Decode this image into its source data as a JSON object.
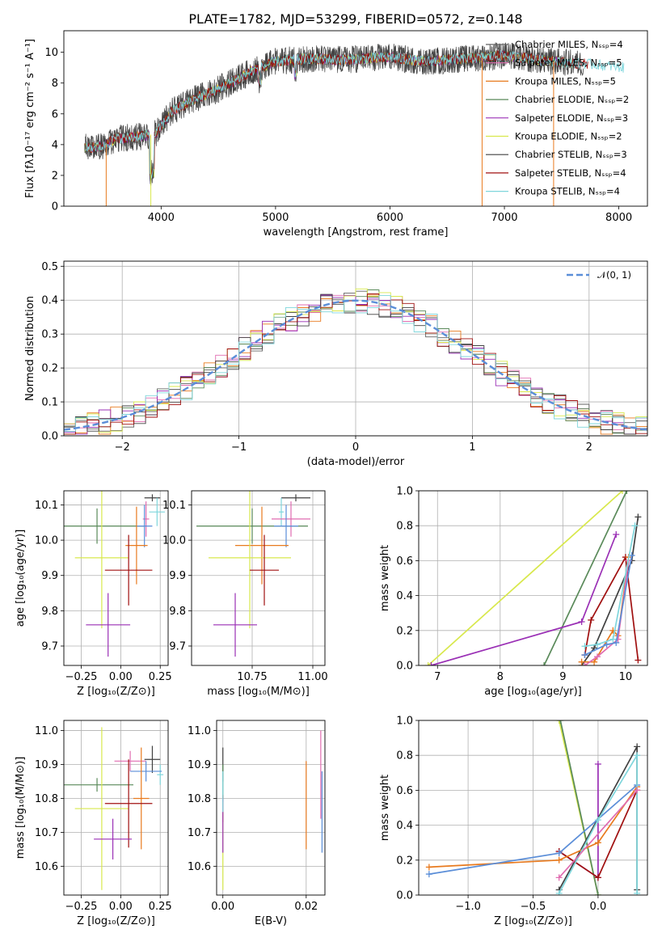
{
  "chart_data": [
    {
      "id": "spectrum",
      "type": "line",
      "title": "PLATE=1782, MJD=53299, FIBERID=0572, z=0.148",
      "xlabel": "wavelength [Angstrom, rest frame]",
      "ylabel": "Flux [fλ10⁻¹⁷ erg cm⁻² s⁻¹ A⁻¹]",
      "xlim": [
        3150,
        8250
      ],
      "ylim": [
        0,
        11.4
      ],
      "xticks": [
        4000,
        5000,
        6000,
        7000,
        8000
      ],
      "yticks": [
        0,
        2,
        4,
        6,
        8,
        10
      ],
      "grid": false,
      "legend_position": "top-right",
      "continuum": {
        "x": [
          3330,
          3500,
          3600,
          3800,
          3950,
          4100,
          4300,
          4500,
          4800,
          5000,
          5300,
          5600,
          6000,
          6300,
          6700,
          7000,
          7300,
          7600,
          7800,
          8050
        ],
        "y": [
          3.8,
          3.9,
          4.4,
          4.5,
          4.7,
          6.2,
          7.0,
          7.6,
          8.8,
          9.4,
          9.6,
          9.5,
          9.7,
          9.4,
          9.6,
          9.8,
          9.5,
          9.3,
          9.2,
          9.0
        ]
      },
      "series": [
        {
          "name": "Chabrier MILES, Nₛₛₚ=4",
          "color": "#606060"
        },
        {
          "name": "Salpeter MILES, Nₛₛₚ=5",
          "color": "#e06cb0"
        },
        {
          "name": "Kroupa MILES, Nₛₛₚ=5",
          "color": "#e87a1e"
        },
        {
          "name": "Chabrier ELODIE, Nₛₛₚ=2",
          "color": "#5a8a5a"
        },
        {
          "name": "Salpeter ELODIE, Nₛₛₚ=3",
          "color": "#9a2fb5"
        },
        {
          "name": "Kroupa ELODIE, Nₛₛₚ=2",
          "color": "#d8e84c"
        },
        {
          "name": "Chabrier STELIB, Nₛₛₚ=3",
          "color": "#404040"
        },
        {
          "name": "Salpeter STELIB, Nₛₛₚ=4",
          "color": "#a01010"
        },
        {
          "name": "Kroupa STELIB, Nₛₛₚ=4",
          "color": "#7fd6dc"
        }
      ]
    },
    {
      "id": "residuals",
      "type": "step",
      "xlabel": "(data-model)/error",
      "ylabel": "Normed distribution",
      "xlim": [
        -2.5,
        2.5
      ],
      "ylim": [
        0,
        0.515
      ],
      "xticks": [
        -2,
        -1,
        0,
        1,
        2
      ],
      "yticks": [
        0.0,
        0.1,
        0.2,
        0.3,
        0.4,
        0.5
      ],
      "grid": true,
      "legend_position": "top-right",
      "normal_curve": {
        "name": "𝒩(0, 1)",
        "color": "#5b8ed8",
        "mean": 0,
        "sigma": 1
      },
      "bin_width": 0.1,
      "series_colors": [
        "#606060",
        "#e06cb0",
        "#e87a1e",
        "#5a8a5a",
        "#9a2fb5",
        "#d8e84c",
        "#404040",
        "#a01010",
        "#7fd6dc"
      ]
    },
    {
      "id": "age_vs_Z",
      "type": "errorbar",
      "xlabel": "Z [log₁₀(Z/Z⊙)]",
      "ylabel": "age  [log₁₀(age/yr)]",
      "xlim": [
        -0.36,
        0.3
      ],
      "ylim": [
        9.645,
        10.14
      ],
      "xticks": [
        -0.25,
        0.0,
        0.25
      ],
      "yticks": [
        9.7,
        9.8,
        9.9,
        10.0,
        10.1
      ],
      "grid": true,
      "points": [
        {
          "x": 0.2,
          "xerr": 0.05,
          "y": 10.12,
          "yerr": 0.01,
          "color": "#404040"
        },
        {
          "x": 0.23,
          "xerr": 0.05,
          "y": 10.08,
          "yerr": 0.04,
          "color": "#7fd6dc"
        },
        {
          "x": 0.16,
          "xerr": 0.02,
          "y": 10.06,
          "yerr": 0.05,
          "color": "#e06cb0"
        },
        {
          "x": -0.15,
          "xerr": 0.3,
          "y": 10.04,
          "yerr": 0.05,
          "color": "#5a8a5a"
        },
        {
          "x": 0.15,
          "xerr": 0.05,
          "y": 10.04,
          "yerr": 0.06,
          "color": "#5b8ed8"
        },
        {
          "x": 0.1,
          "xerr": 0.07,
          "y": 9.985,
          "yerr": 0.11,
          "color": "#e87a1e"
        },
        {
          "x": -0.12,
          "xerr": 0.17,
          "y": 9.95,
          "yerr": 0.2,
          "color": "#d8e84c"
        },
        {
          "x": 0.05,
          "xerr": 0.15,
          "y": 9.915,
          "yerr": 0.1,
          "color": "#a01010"
        },
        {
          "x": -0.08,
          "xerr": 0.14,
          "y": 9.76,
          "yerr": 0.09,
          "color": "#9a2fb5"
        }
      ]
    },
    {
      "id": "age_vs_mass",
      "type": "errorbar",
      "xlabel": "mass [log₁₀(M/M⊙)]",
      "ylabel": "",
      "xlim": [
        10.5,
        11.05
      ],
      "ylim": [
        9.645,
        10.14
      ],
      "xticks": [
        10.75,
        11.0
      ],
      "yticks": [
        9.7,
        9.8,
        9.9,
        10.0,
        10.1
      ],
      "grid": true,
      "points": [
        {
          "x": 10.93,
          "xerr": 0.06,
          "y": 10.12,
          "yerr": 0.01,
          "color": "#404040"
        },
        {
          "x": 10.87,
          "xerr": 0.01,
          "y": 10.08,
          "yerr": 0.04,
          "color": "#7fd6dc"
        },
        {
          "x": 10.91,
          "xerr": 0.08,
          "y": 10.06,
          "yerr": 0.05,
          "color": "#e06cb0"
        },
        {
          "x": 10.75,
          "xerr": 0.23,
          "y": 10.04,
          "yerr": 0.05,
          "color": "#5a8a5a"
        },
        {
          "x": 10.89,
          "xerr": 0.05,
          "y": 10.04,
          "yerr": 0.06,
          "color": "#5b8ed8"
        },
        {
          "x": 10.79,
          "xerr": 0.11,
          "y": 9.985,
          "yerr": 0.11,
          "color": "#e87a1e"
        },
        {
          "x": 10.74,
          "xerr": 0.17,
          "y": 9.95,
          "yerr": 0.2,
          "color": "#d8e84c"
        },
        {
          "x": 10.8,
          "xerr": 0.06,
          "y": 9.915,
          "yerr": 0.1,
          "color": "#a01010"
        },
        {
          "x": 10.68,
          "xerr": 0.09,
          "y": 9.76,
          "yerr": 0.09,
          "color": "#9a2fb5"
        }
      ]
    },
    {
      "id": "weight_vs_age",
      "type": "line",
      "xlabel": "age  [log₁₀(age/yr)]",
      "ylabel": "mass weight",
      "xlim": [
        6.7,
        10.35
      ],
      "ylim": [
        0,
        1
      ],
      "xticks": [
        7,
        8,
        9,
        10
      ],
      "yticks": [
        0.0,
        0.2,
        0.4,
        0.6,
        0.8,
        1.0
      ],
      "grid": true,
      "series": [
        {
          "color": "#d8e84c",
          "x": [
            6.85,
            9.95
          ],
          "y": [
            0.0,
            1.0
          ]
        },
        {
          "color": "#5a8a5a",
          "x": [
            8.7,
            10.02
          ],
          "y": [
            0.0,
            1.0
          ]
        },
        {
          "color": "#9a2fb5",
          "x": [
            6.9,
            9.3,
            9.85
          ],
          "y": [
            0.0,
            0.25,
            0.75
          ]
        },
        {
          "color": "#404040",
          "x": [
            9.3,
            9.5,
            10.1,
            10.2
          ],
          "y": [
            0.0,
            0.1,
            0.6,
            0.85
          ]
        },
        {
          "color": "#a01010",
          "x": [
            9.35,
            9.45,
            10.0,
            10.2
          ],
          "y": [
            0.06,
            0.26,
            0.62,
            0.03
          ]
        },
        {
          "color": "#e87a1e",
          "x": [
            9.3,
            9.5,
            9.8,
            9.88,
            10.05
          ],
          "y": [
            0.02,
            0.02,
            0.2,
            0.17,
            0.62
          ]
        },
        {
          "color": "#e06cb0",
          "x": [
            9.35,
            9.55,
            9.88,
            10.05
          ],
          "y": [
            0.0,
            0.05,
            0.15,
            0.6
          ]
        },
        {
          "color": "#5b8ed8",
          "x": [
            9.35,
            9.7,
            9.85,
            10.1
          ],
          "y": [
            0.06,
            0.12,
            0.13,
            0.63
          ]
        },
        {
          "color": "#7fd6dc",
          "x": [
            9.35,
            9.55,
            9.8,
            10.15
          ],
          "y": [
            0.11,
            0.12,
            0.15,
            0.8
          ]
        }
      ]
    },
    {
      "id": "mass_vs_Z",
      "type": "errorbar",
      "xlabel": "Z [log₁₀(Z/Z⊙)]",
      "ylabel": "mass [log₁₀(M/M⊙)]",
      "xlim": [
        -0.36,
        0.3
      ],
      "ylim": [
        10.515,
        11.03
      ],
      "xticks": [
        -0.25,
        0.0,
        0.25
      ],
      "yticks": [
        10.6,
        10.7,
        10.8,
        10.9,
        11.0
      ],
      "grid": true,
      "points": [
        {
          "x": 0.2,
          "xerr": 0.05,
          "y": 10.915,
          "yerr": 0.04,
          "color": "#404040"
        },
        {
          "x": 0.25,
          "xerr": 0.02,
          "y": 10.87,
          "yerr": 0.03,
          "color": "#7fd6dc"
        },
        {
          "x": 0.06,
          "xerr": 0.1,
          "y": 10.91,
          "yerr": 0.03,
          "color": "#e06cb0"
        },
        {
          "x": -0.15,
          "xerr": 0.23,
          "y": 10.84,
          "yerr": 0.02,
          "color": "#5a8a5a"
        },
        {
          "x": 0.16,
          "xerr": 0.1,
          "y": 10.88,
          "yerr": 0.03,
          "color": "#5b8ed8"
        },
        {
          "x": 0.13,
          "xerr": 0.05,
          "y": 10.8,
          "yerr": 0.15,
          "color": "#e87a1e"
        },
        {
          "x": -0.12,
          "xerr": 0.17,
          "y": 10.77,
          "yerr": 0.24,
          "color": "#d8e84c"
        },
        {
          "x": 0.05,
          "xerr": 0.15,
          "y": 10.785,
          "yerr": 0.13,
          "color": "#a01010"
        },
        {
          "x": -0.05,
          "xerr": 0.12,
          "y": 10.68,
          "yerr": 0.06,
          "color": "#9a2fb5"
        }
      ]
    },
    {
      "id": "mass_vs_EBV",
      "type": "errorbar",
      "xlabel": "E(B-V)",
      "ylabel": "",
      "xlim": [
        -0.0015,
        0.0245
      ],
      "ylim": [
        10.515,
        11.03
      ],
      "xticks": [
        0.0,
        0.02
      ],
      "yticks": [
        10.6,
        10.7,
        10.8,
        10.9,
        11.0
      ],
      "grid": true,
      "points": [
        {
          "x": 0.0,
          "xerr": 0,
          "y": 10.9,
          "yerr": 0.05,
          "color": "#404040"
        },
        {
          "x": 0.0,
          "xerr": 0,
          "y": 10.85,
          "yerr": 0.05,
          "color": "#5a8a5a"
        },
        {
          "x": 0.0,
          "xerr": 0,
          "y": 10.77,
          "yerr": 0.04,
          "color": "#a01010"
        },
        {
          "x": 0.0,
          "xerr": 0,
          "y": 10.66,
          "yerr": 0.13,
          "color": "#d8e84c"
        },
        {
          "x": 0.0,
          "xerr": 0,
          "y": 10.72,
          "yerr": 0.08,
          "color": "#9a2fb5"
        },
        {
          "x": 0.0,
          "xerr": 0,
          "y": 10.82,
          "yerr": 0.06,
          "color": "#7fd6dc"
        },
        {
          "x": 0.02,
          "xerr": 0,
          "y": 10.78,
          "yerr": 0.13,
          "color": "#e87a1e"
        },
        {
          "x": 0.0235,
          "xerr": 0,
          "y": 10.87,
          "yerr": 0.13,
          "color": "#e06cb0"
        },
        {
          "x": 0.0238,
          "xerr": 0,
          "y": 10.76,
          "yerr": 0.12,
          "color": "#5b8ed8"
        }
      ]
    },
    {
      "id": "weight_vs_Z",
      "type": "line",
      "xlabel": "Z [log₁₀(Z/Z⊙)]",
      "ylabel": "mass weight",
      "xlim": [
        -1.38,
        0.38
      ],
      "ylim": [
        0,
        1
      ],
      "xticks": [
        -1.0,
        -0.5,
        0.0
      ],
      "yticks": [
        0.0,
        0.2,
        0.4,
        0.6,
        0.8,
        1.0
      ],
      "grid": true,
      "series": [
        {
          "color": "#d8e84c",
          "x": [
            -0.3,
            0.0
          ],
          "y": [
            1.0,
            0.0
          ]
        },
        {
          "color": "#5a8a5a",
          "x": [
            -0.29,
            0.0
          ],
          "y": [
            1.0,
            0.0
          ]
        },
        {
          "color": "#9a2fb5",
          "x": [
            -0.3,
            0.0,
            0.0
          ],
          "y": [
            0.25,
            0.1,
            0.75
          ]
        },
        {
          "color": "#404040",
          "x": [
            -0.3,
            0.3,
            0.3
          ],
          "y": [
            0.03,
            0.85,
            0.03
          ]
        },
        {
          "color": "#a01010",
          "x": [
            -0.3,
            0.0,
            0.3
          ],
          "y": [
            0.25,
            0.1,
            0.6
          ]
        },
        {
          "color": "#e87a1e",
          "x": [
            -1.3,
            -0.3,
            0.0,
            0.3
          ],
          "y": [
            0.16,
            0.2,
            0.3,
            0.62
          ]
        },
        {
          "color": "#5b8ed8",
          "x": [
            -1.3,
            -0.3,
            0.3
          ],
          "y": [
            0.12,
            0.24,
            0.63
          ]
        },
        {
          "color": "#7fd6dc",
          "x": [
            -0.3,
            0.0,
            0.3,
            0.3
          ],
          "y": [
            0.01,
            0.43,
            0.8,
            0.01
          ]
        },
        {
          "color": "#e06cb0",
          "x": [
            -0.3,
            0.3
          ],
          "y": [
            0.1,
            0.6
          ]
        }
      ]
    }
  ]
}
